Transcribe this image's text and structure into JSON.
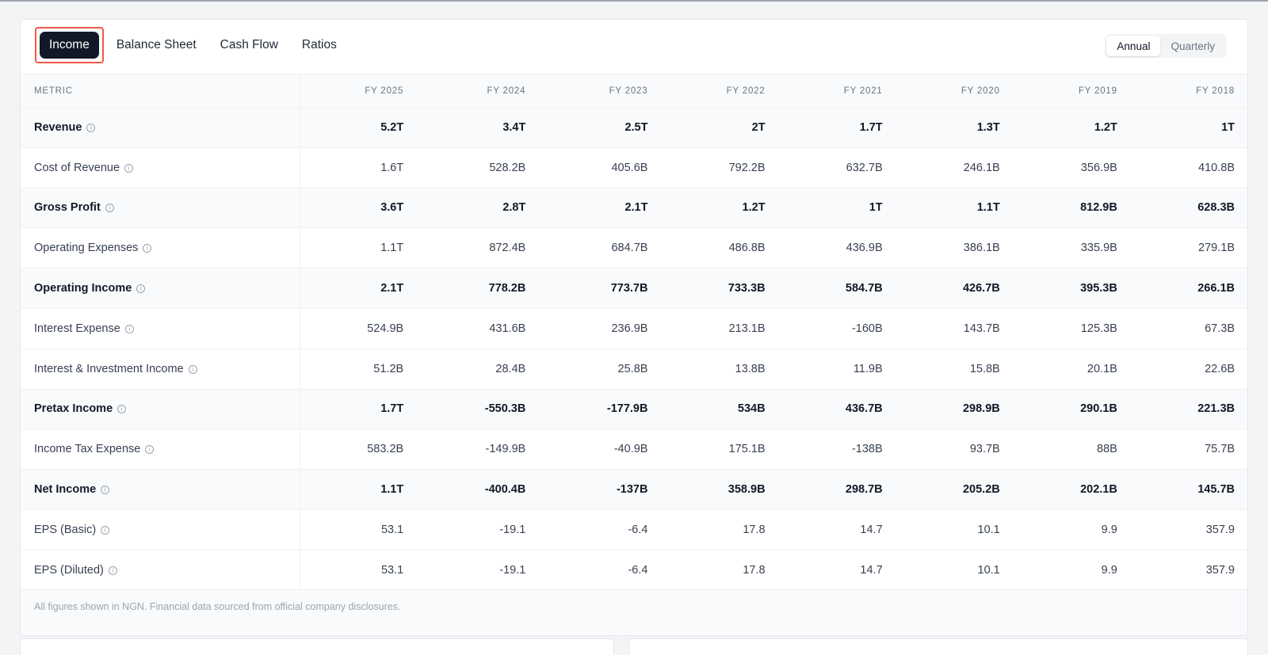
{
  "tabs": [
    {
      "label": "Income",
      "active": true
    },
    {
      "label": "Balance Sheet",
      "active": false
    },
    {
      "label": "Cash Flow",
      "active": false
    },
    {
      "label": "Ratios",
      "active": false
    }
  ],
  "period_toggle": {
    "annual": "Annual",
    "quarterly": "Quarterly",
    "selected": "Annual"
  },
  "table": {
    "metric_header": "METRIC",
    "columns": [
      "FY 2025",
      "FY 2024",
      "FY 2023",
      "FY 2022",
      "FY 2021",
      "FY 2020",
      "FY 2019",
      "FY 2018"
    ],
    "rows": [
      {
        "label": "Revenue",
        "bold": true,
        "values": [
          "5.2T",
          "3.4T",
          "2.5T",
          "2T",
          "1.7T",
          "1.3T",
          "1.2T",
          "1T"
        ]
      },
      {
        "label": "Cost of Revenue",
        "bold": false,
        "values": [
          "1.6T",
          "528.2B",
          "405.6B",
          "792.2B",
          "632.7B",
          "246.1B",
          "356.9B",
          "410.8B"
        ]
      },
      {
        "label": "Gross Profit",
        "bold": true,
        "values": [
          "3.6T",
          "2.8T",
          "2.1T",
          "1.2T",
          "1T",
          "1.1T",
          "812.9B",
          "628.3B"
        ]
      },
      {
        "label": "Operating Expenses",
        "bold": false,
        "values": [
          "1.1T",
          "872.4B",
          "684.7B",
          "486.8B",
          "436.9B",
          "386.1B",
          "335.9B",
          "279.1B"
        ]
      },
      {
        "label": "Operating Income",
        "bold": true,
        "values": [
          "2.1T",
          "778.2B",
          "773.7B",
          "733.3B",
          "584.7B",
          "426.7B",
          "395.3B",
          "266.1B"
        ]
      },
      {
        "label": "Interest Expense",
        "bold": false,
        "values": [
          "524.9B",
          "431.6B",
          "236.9B",
          "213.1B",
          "-160B",
          "143.7B",
          "125.3B",
          "67.3B"
        ]
      },
      {
        "label": "Interest & Investment Income",
        "bold": false,
        "values": [
          "51.2B",
          "28.4B",
          "25.8B",
          "13.8B",
          "11.9B",
          "15.8B",
          "20.1B",
          "22.6B"
        ]
      },
      {
        "label": "Pretax Income",
        "bold": true,
        "values": [
          "1.7T",
          "-550.3B",
          "-177.9B",
          "534B",
          "436.7B",
          "298.9B",
          "290.1B",
          "221.3B"
        ]
      },
      {
        "label": "Income Tax Expense",
        "bold": false,
        "values": [
          "583.2B",
          "-149.9B",
          "-40.9B",
          "175.1B",
          "-138B",
          "93.7B",
          "88B",
          "75.7B"
        ]
      },
      {
        "label": "Net Income",
        "bold": true,
        "values": [
          "1.1T",
          "-400.4B",
          "-137B",
          "358.9B",
          "298.7B",
          "205.2B",
          "202.1B",
          "145.7B"
        ]
      },
      {
        "label": "EPS (Basic)",
        "bold": false,
        "values": [
          "53.1",
          "-19.1",
          "-6.4",
          "17.8",
          "14.7",
          "10.1",
          "9.9",
          "357.9"
        ]
      },
      {
        "label": "EPS (Diluted)",
        "bold": false,
        "values": [
          "53.1",
          "-19.1",
          "-6.4",
          "17.8",
          "14.7",
          "10.1",
          "9.9",
          "357.9"
        ]
      }
    ]
  },
  "footer_note": "All figures shown in NGN. Financial data sourced from official company disclosures.",
  "icons": {
    "row_info": "info-circle-icon"
  }
}
